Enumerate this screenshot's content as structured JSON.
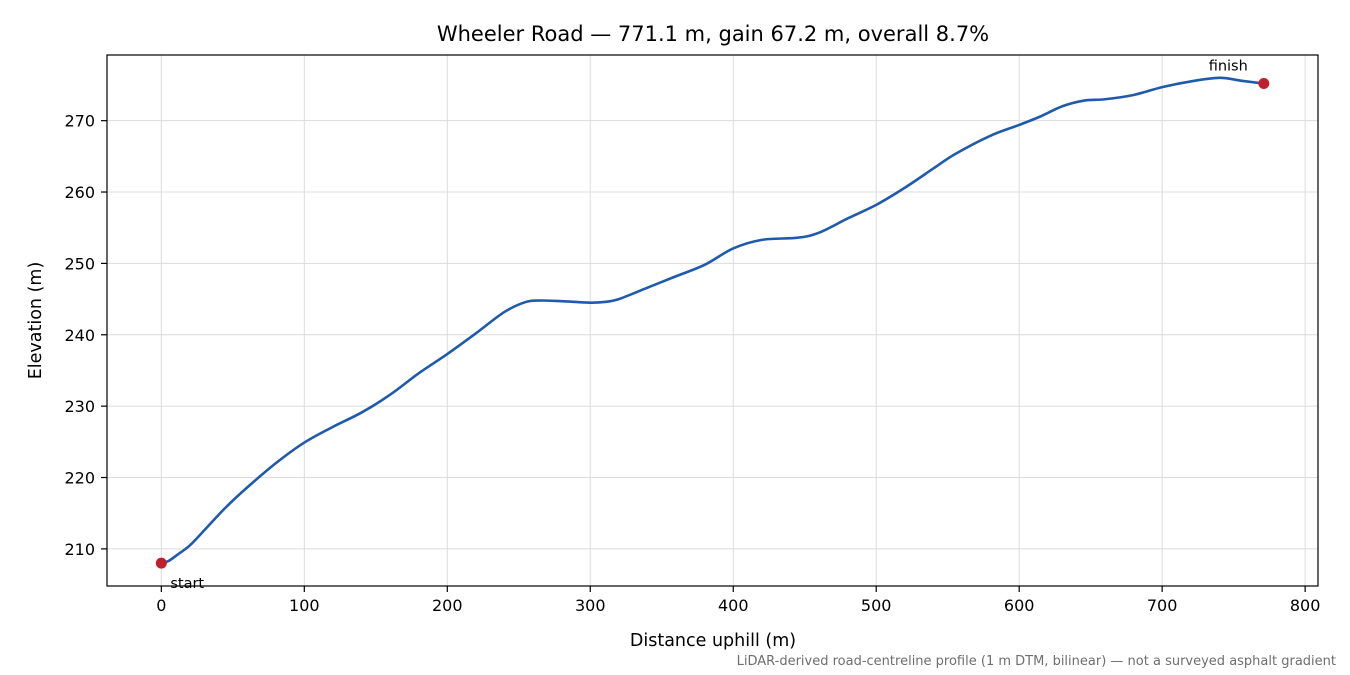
{
  "chart_data": {
    "type": "line",
    "title": "Wheeler Road — 771.1 m, gain 67.2 m, overall 8.7%",
    "xlabel": "Distance uphill (m)",
    "ylabel": "Elevation (m)",
    "xlim": [
      -38,
      809
    ],
    "ylim": [
      204.8,
      279.2
    ],
    "xticks": [
      0,
      100,
      200,
      300,
      400,
      500,
      600,
      700,
      800
    ],
    "yticks": [
      210,
      220,
      230,
      240,
      250,
      260,
      270
    ],
    "grid": true,
    "series": [
      {
        "color": "#1f5aab",
        "x": [
          0,
          5,
          10,
          20,
          30,
          45,
          60,
          80,
          100,
          120,
          140,
          160,
          180,
          200,
          220,
          240,
          255,
          265,
          280,
          300,
          310,
          320,
          340,
          360,
          380,
          400,
          420,
          445,
          460,
          480,
          500,
          520,
          540,
          555,
          580,
          600,
          615,
          630,
          645,
          660,
          680,
          700,
          720,
          740,
          755,
          771.1
        ],
        "y": [
          208.0,
          208.3,
          209.0,
          210.5,
          212.6,
          215.8,
          218.6,
          222.0,
          224.9,
          227.1,
          229.1,
          231.6,
          234.6,
          237.3,
          240.2,
          243.2,
          244.6,
          244.8,
          244.7,
          244.5,
          244.6,
          245.0,
          246.6,
          248.2,
          249.8,
          252.1,
          253.3,
          253.6,
          254.3,
          256.3,
          258.2,
          260.6,
          263.3,
          265.3,
          267.9,
          269.4,
          270.6,
          272.0,
          272.8,
          273.0,
          273.6,
          274.7,
          275.5,
          276.0,
          275.6,
          275.2
        ]
      }
    ],
    "markers": [
      {
        "label": "start",
        "x": 0,
        "y": 208.0,
        "color": "#c0202b"
      },
      {
        "label": "finish",
        "x": 771.1,
        "y": 275.2,
        "color": "#c0202b"
      }
    ],
    "footnote": "LiDAR-derived road-centreline profile (1 m DTM, bilinear) — not a surveyed asphalt gradient"
  }
}
